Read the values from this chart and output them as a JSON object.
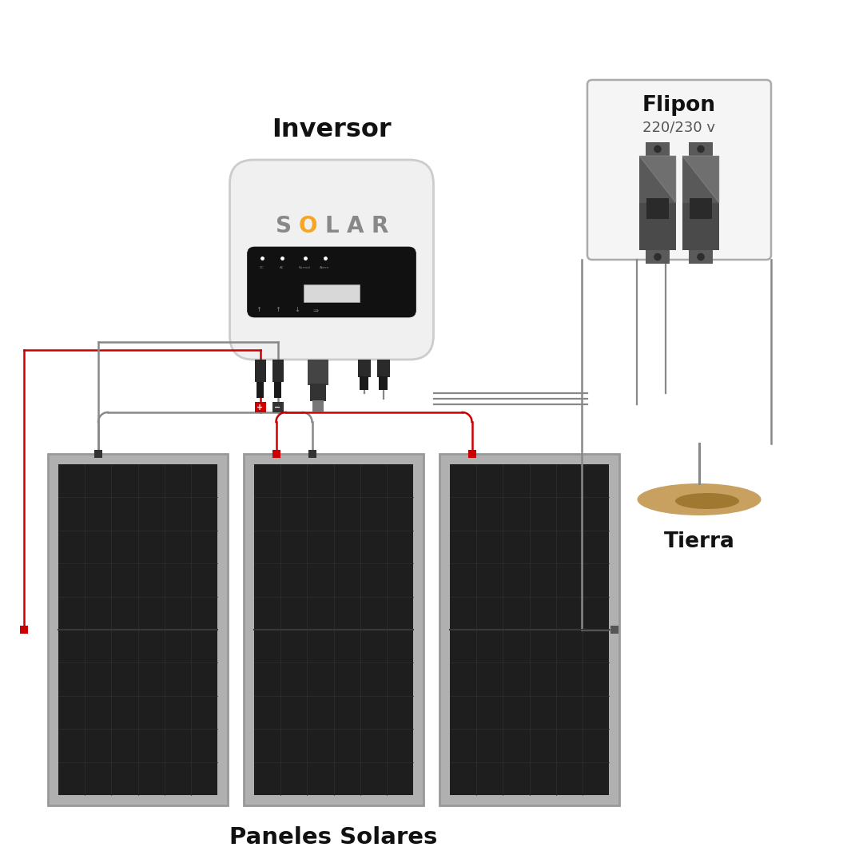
{
  "bg_color": "#ffffff",
  "inversor_label": "Inversor",
  "flipon_label": "Flipon",
  "flipon_sublabel": "220/230 v",
  "paneles_label": "Paneles Solares",
  "tierra_label": "Tierra",
  "solar_S_color": "#888888",
  "solar_O_color": "#F5A623",
  "solar_LAR_color": "#888888",
  "inv_body_color": "#F0F0F0",
  "inv_border_color": "#CCCCCC",
  "display_black": "#111111",
  "display_screen": "#d8d8d8",
  "panel_bg": "#1e1e1e",
  "panel_frame": "#b0b0b0",
  "panel_frame_border": "#999999",
  "panel_grid_color": "#2e2e2e",
  "panel_mid_line": "#383838",
  "wire_gray": "#888888",
  "wire_red": "#cc0000",
  "connector_black": "#222222",
  "connector_red": "#cc0000",
  "connector_neg": "#333333",
  "flipon_body_dark": "#4a4a4a",
  "flipon_highlight": "#666666",
  "flipon_shadow": "#333333",
  "flipon_terminal": "#5a5a5a",
  "flipon_box_bg": "#f5f5f5",
  "flipon_box_border": "#aaaaaa",
  "tierra_fill": "#c8a060",
  "tierra_dark": "#a07830"
}
